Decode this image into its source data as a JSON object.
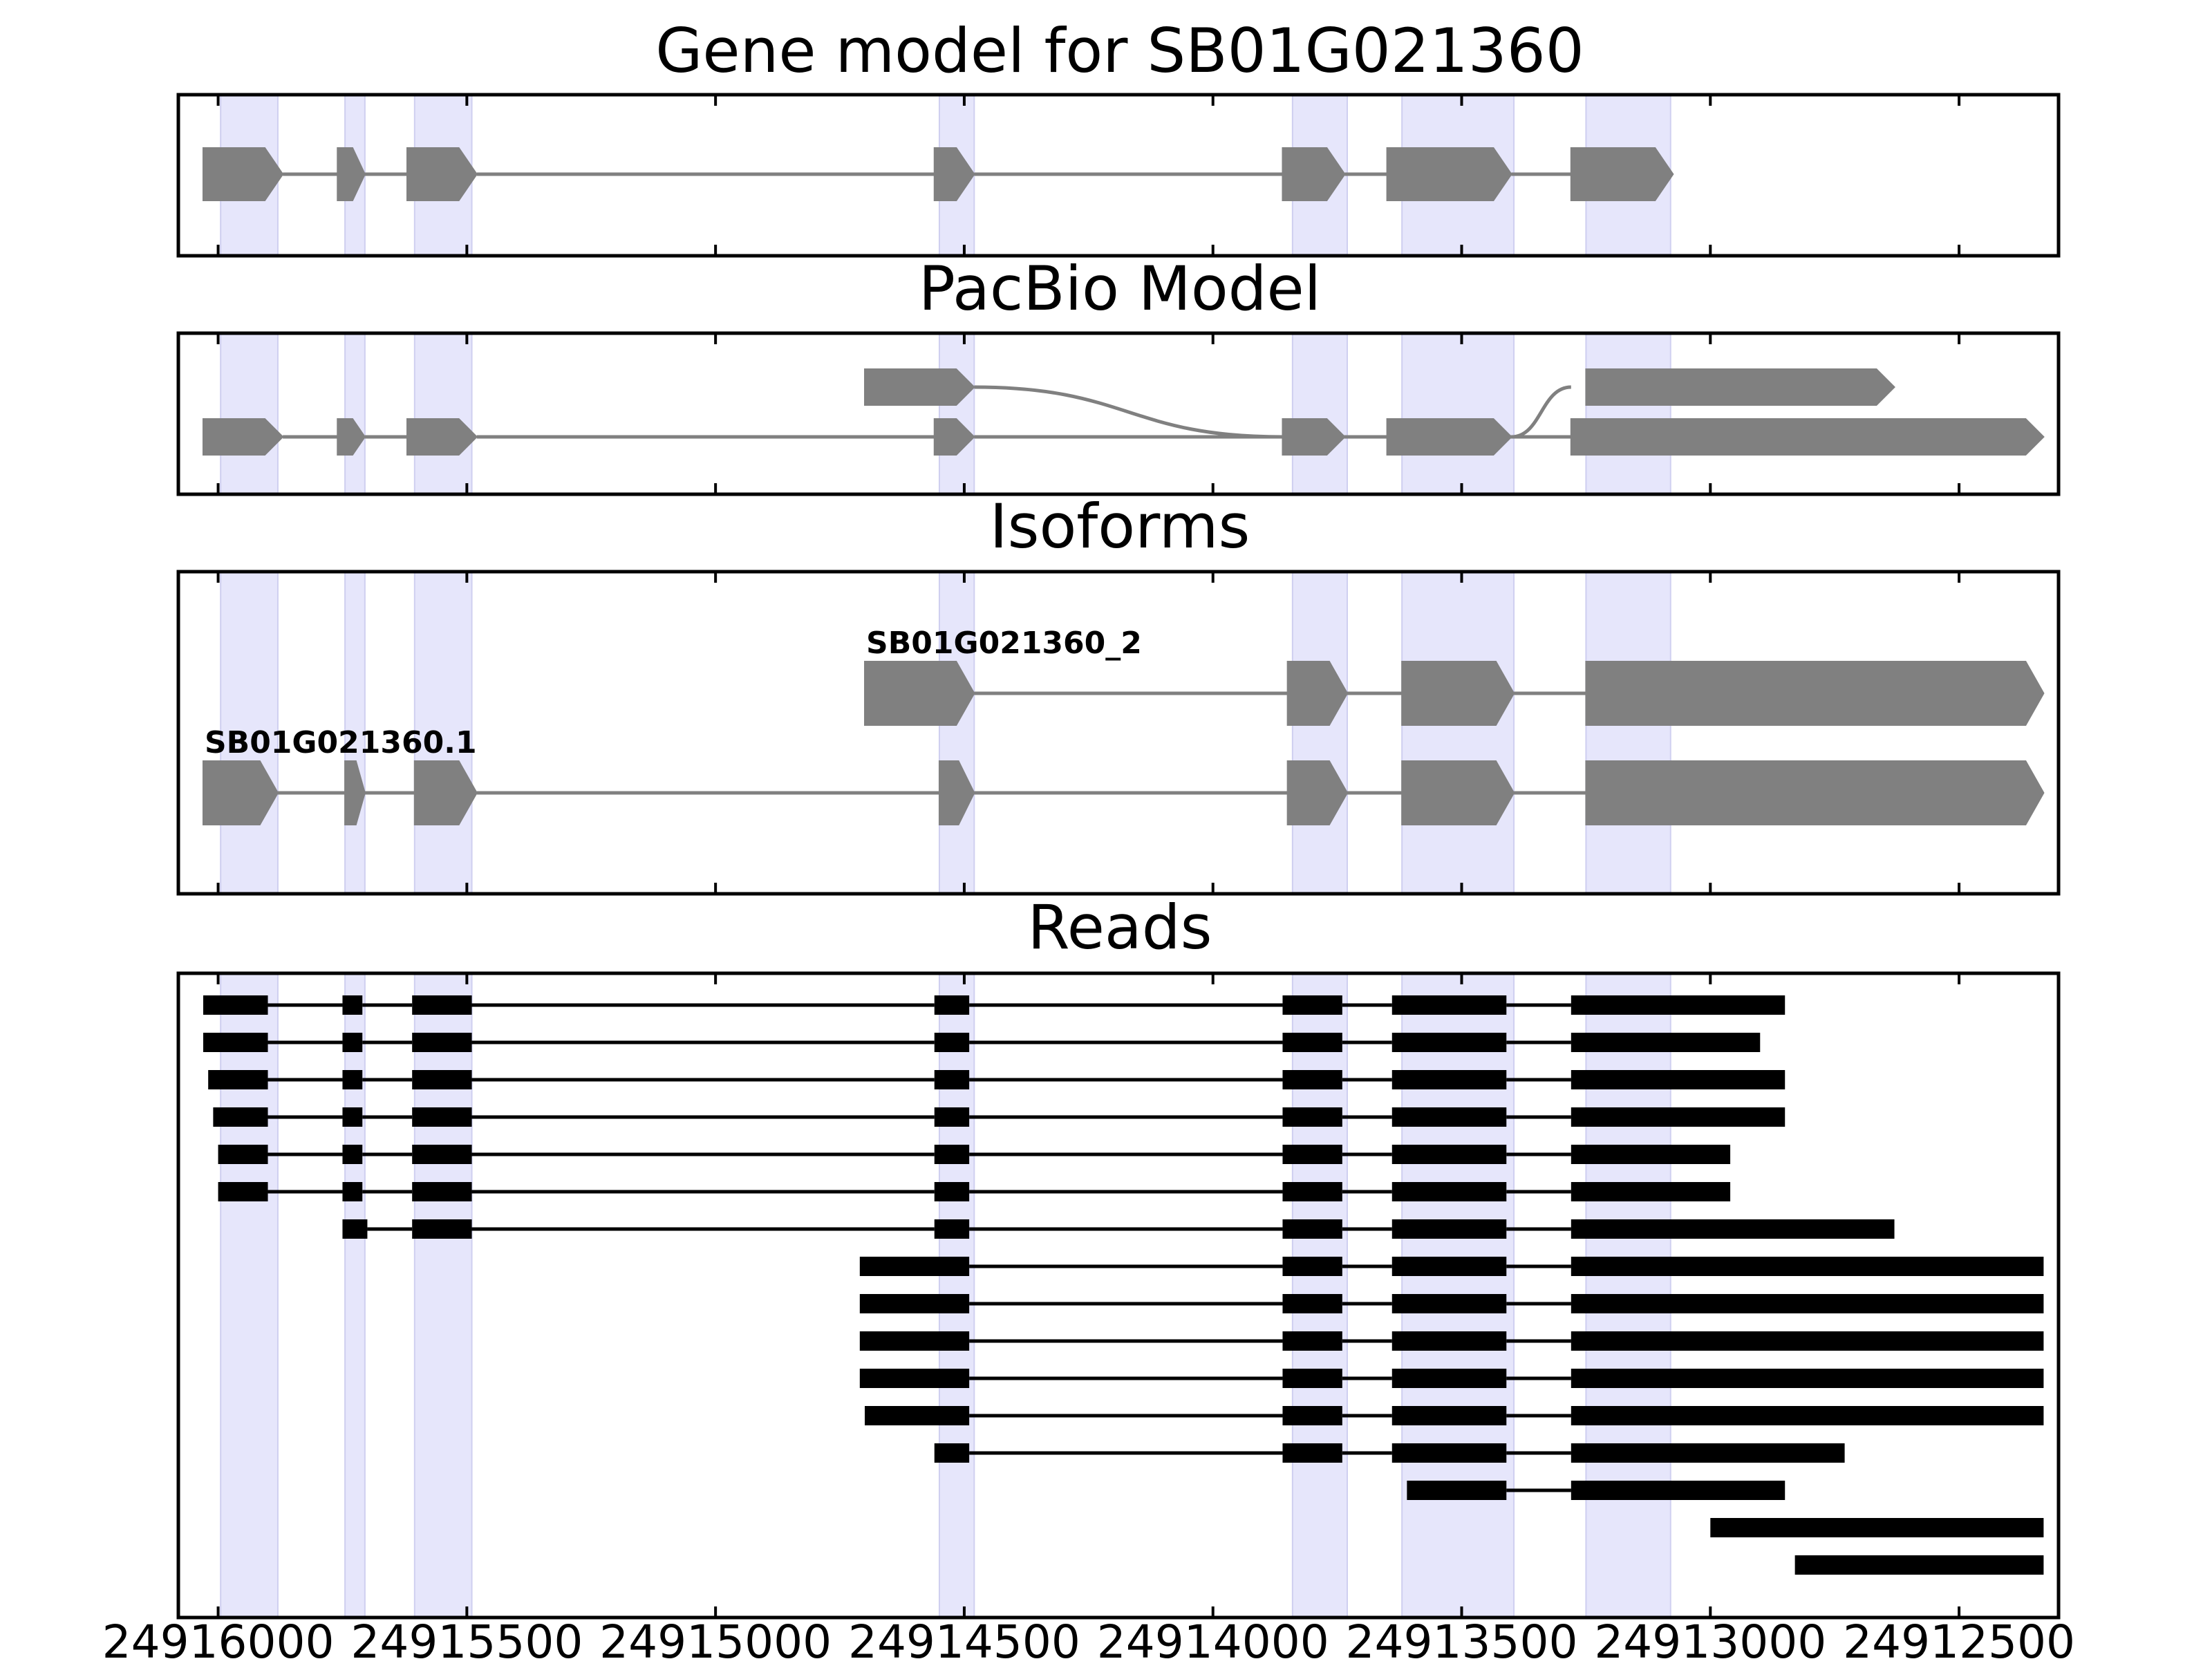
{
  "figure_title": "Gene model for SB01G021360",
  "axis": {
    "start": 24916080,
    "end": 24912300,
    "tick_labels": [
      "24916000",
      "24915500",
      "24915000",
      "24914500",
      "24914000",
      "24913500",
      "24913000",
      "24912500"
    ]
  },
  "exon_bands": [
    [
      24915995,
      24915880
    ],
    [
      24915745,
      24915705
    ],
    [
      24915605,
      24915490
    ],
    [
      24914550,
      24914480
    ],
    [
      24913840,
      24913730
    ],
    [
      24913620,
      24913395
    ],
    [
      24913250,
      24913080
    ]
  ],
  "panels": [
    {
      "id": "gene-model",
      "title": "",
      "transcripts": [
        {
          "label": "",
          "exons": [
            [
              24916030,
              24915870
            ],
            [
              24915760,
              24915705
            ],
            [
              24915620,
              24915480
            ],
            [
              24914560,
              24914480
            ],
            [
              24913860,
              24913735
            ],
            [
              24913650,
              24913400
            ],
            [
              24913280,
              24913075
            ]
          ]
        }
      ]
    },
    {
      "id": "pacbio-model",
      "title": "PacBio Model",
      "transcripts": [
        {
          "label": "",
          "exons": [
            [
              24914700,
              24914480
            ],
            [
              24913250,
              24912630
            ]
          ],
          "junctions": [
            {
              "from": 24914480,
              "to": 24913860,
              "from_row": 0,
              "to_row": 1,
              "curve": true
            },
            {
              "from": 24913860,
              "to": 24913735,
              "from_row": 1,
              "to_row": 1
            },
            {
              "from": 24913650,
              "to": 24913400,
              "from_row": 1,
              "to_row": 1
            },
            {
              "from": 24913400,
              "to": 24913280,
              "from_row": 1,
              "to_row": 0,
              "curve": true
            }
          ]
        },
        {
          "label": "",
          "exons": [
            [
              24916030,
              24915870
            ],
            [
              24915760,
              24915705
            ],
            [
              24915620,
              24915480
            ],
            [
              24914560,
              24914480
            ],
            [
              24913860,
              24913735
            ],
            [
              24913650,
              24913400
            ],
            [
              24913280,
              24912330
            ]
          ]
        }
      ]
    },
    {
      "id": "isoforms",
      "title": "Isoforms",
      "transcripts": [
        {
          "label": "SB01G021360_2",
          "exons": [
            [
              24914700,
              24914480
            ],
            [
              24913850,
              24913730
            ],
            [
              24913620,
              24913395
            ],
            [
              24913250,
              24912330
            ]
          ]
        },
        {
          "label": "SB01G021360.1",
          "exons": [
            [
              24916030,
              24915880
            ],
            [
              24915745,
              24915705
            ],
            [
              24915605,
              24915480
            ],
            [
              24914550,
              24914480
            ],
            [
              24913850,
              24913730
            ],
            [
              24913620,
              24913395
            ],
            [
              24913250,
              24912330
            ]
          ]
        }
      ]
    },
    {
      "id": "reads",
      "title": "Reads",
      "reads": [
        [
          [
            24916030,
            24915900
          ],
          [
            24915750,
            24915710
          ],
          [
            24915610,
            24915490
          ],
          [
            24914560,
            24914490
          ],
          [
            24913860,
            24913740
          ],
          [
            24913640,
            24913410
          ],
          [
            24913280,
            24912850
          ]
        ],
        [
          [
            24916030,
            24915900
          ],
          [
            24915750,
            24915710
          ],
          [
            24915610,
            24915490
          ],
          [
            24914560,
            24914490
          ],
          [
            24913860,
            24913740
          ],
          [
            24913640,
            24913410
          ],
          [
            24913280,
            24912900
          ]
        ],
        [
          [
            24916020,
            24915900
          ],
          [
            24915750,
            24915710
          ],
          [
            24915610,
            24915490
          ],
          [
            24914560,
            24914490
          ],
          [
            24913860,
            24913740
          ],
          [
            24913640,
            24913410
          ],
          [
            24913280,
            24912850
          ]
        ],
        [
          [
            24916010,
            24915900
          ],
          [
            24915750,
            24915710
          ],
          [
            24915610,
            24915490
          ],
          [
            24914560,
            24914490
          ],
          [
            24913860,
            24913740
          ],
          [
            24913640,
            24913410
          ],
          [
            24913280,
            24912850
          ]
        ],
        [
          [
            24916000,
            24915900
          ],
          [
            24915750,
            24915710
          ],
          [
            24915610,
            24915490
          ],
          [
            24914560,
            24914490
          ],
          [
            24913860,
            24913740
          ],
          [
            24913640,
            24913410
          ],
          [
            24913280,
            24912960
          ]
        ],
        [
          [
            24916000,
            24915900
          ],
          [
            24915750,
            24915710
          ],
          [
            24915610,
            24915490
          ],
          [
            24914560,
            24914490
          ],
          [
            24913860,
            24913740
          ],
          [
            24913640,
            24913410
          ],
          [
            24913280,
            24912960
          ]
        ],
        [
          [
            24915750,
            24915700
          ],
          [
            24915610,
            24915490
          ],
          [
            24914560,
            24914490
          ],
          [
            24913860,
            24913740
          ],
          [
            24913640,
            24913410
          ],
          [
            24913280,
            24912630
          ]
        ],
        [
          [
            24914710,
            24914490
          ],
          [
            24913860,
            24913740
          ],
          [
            24913640,
            24913410
          ],
          [
            24913280,
            24912330
          ]
        ],
        [
          [
            24914710,
            24914490
          ],
          [
            24913860,
            24913740
          ],
          [
            24913640,
            24913410
          ],
          [
            24913280,
            24912330
          ]
        ],
        [
          [
            24914710,
            24914490
          ],
          [
            24913860,
            24913740
          ],
          [
            24913640,
            24913410
          ],
          [
            24913280,
            24912330
          ]
        ],
        [
          [
            24914710,
            24914490
          ],
          [
            24913860,
            24913740
          ],
          [
            24913640,
            24913410
          ],
          [
            24913280,
            24912330
          ]
        ],
        [
          [
            24914700,
            24914490
          ],
          [
            24913860,
            24913740
          ],
          [
            24913640,
            24913410
          ],
          [
            24913280,
            24912330
          ]
        ],
        [
          [
            24914560,
            24914490
          ],
          [
            24913860,
            24913740
          ],
          [
            24913640,
            24913410
          ],
          [
            24913280,
            24912730
          ]
        ],
        [
          [
            24913610,
            24913410
          ],
          [
            24913280,
            24912850
          ]
        ],
        [
          [
            24913000,
            24912330
          ]
        ],
        [
          [
            24912830,
            24912330
          ]
        ]
      ]
    }
  ]
}
